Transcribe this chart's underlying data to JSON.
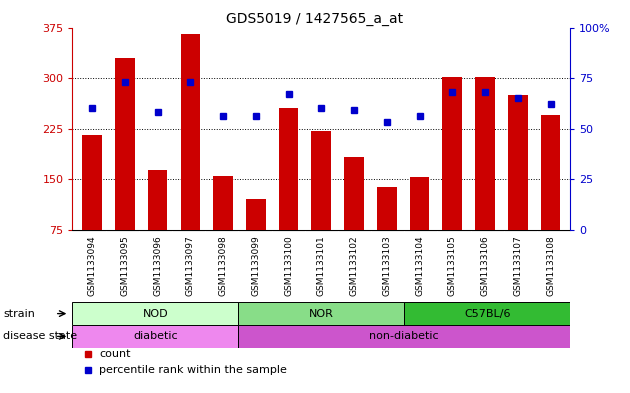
{
  "title": "GDS5019 / 1427565_a_at",
  "samples": [
    "GSM1133094",
    "GSM1133095",
    "GSM1133096",
    "GSM1133097",
    "GSM1133098",
    "GSM1133099",
    "GSM1133100",
    "GSM1133101",
    "GSM1133102",
    "GSM1133103",
    "GSM1133104",
    "GSM1133105",
    "GSM1133106",
    "GSM1133107",
    "GSM1133108"
  ],
  "counts": [
    215,
    330,
    163,
    365,
    155,
    120,
    255,
    222,
    183,
    138,
    153,
    302,
    301,
    275,
    245
  ],
  "percentile_ranks": [
    60,
    73,
    58,
    73,
    56,
    56,
    67,
    60,
    59,
    53,
    56,
    68,
    68,
    65,
    62
  ],
  "ylim_left": [
    75,
    375
  ],
  "ylim_right": [
    0,
    100
  ],
  "yticks_left": [
    75,
    150,
    225,
    300,
    375
  ],
  "yticks_right": [
    0,
    25,
    50,
    75,
    100
  ],
  "bar_color": "#cc0000",
  "dot_color": "#0000cc",
  "plot_bg": "#ffffff",
  "sample_area_bg": "#c8c8c8",
  "strain_groups": [
    {
      "label": "NOD",
      "start": 0,
      "end": 4,
      "color": "#ccffcc"
    },
    {
      "label": "NOR",
      "start": 5,
      "end": 9,
      "color": "#88dd88"
    },
    {
      "label": "C57BL/6",
      "start": 10,
      "end": 14,
      "color": "#33bb33"
    }
  ],
  "disease_groups": [
    {
      "label": "diabetic",
      "start": 0,
      "end": 4,
      "color": "#ee88ee"
    },
    {
      "label": "non-diabetic",
      "start": 5,
      "end": 14,
      "color": "#cc55cc"
    }
  ],
  "left_label_color": "#cc0000",
  "right_label_color": "#0000cc"
}
